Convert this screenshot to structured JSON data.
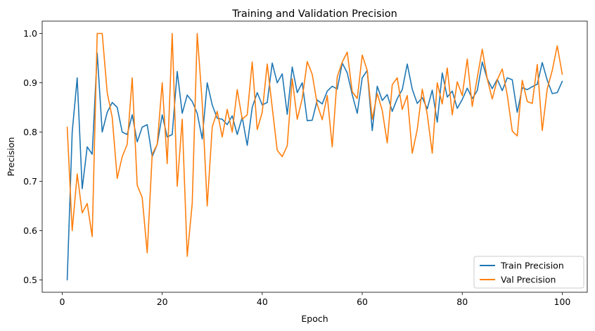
{
  "chart_data": {
    "type": "line",
    "title": "Training and Validation Precision",
    "xlabel": "Epoch",
    "ylabel": "Precision",
    "xlim": [
      -4,
      105
    ],
    "ylim": [
      0.475,
      1.025
    ],
    "xticks": [
      0,
      20,
      40,
      60,
      80,
      100
    ],
    "yticks": [
      0.5,
      0.6,
      0.7,
      0.8,
      0.9,
      1.0
    ],
    "ytick_labels": [
      "0.5",
      "0.6",
      "0.7",
      "0.8",
      "0.9",
      "1.0"
    ],
    "grid": false,
    "legend_position": "lower-right",
    "series": [
      {
        "name": "Train Precision",
        "color": "#1f77b4",
        "x": [
          1,
          2,
          3,
          4,
          5,
          6,
          7,
          8,
          9,
          10,
          11,
          12,
          13,
          14,
          15,
          16,
          17,
          18,
          19,
          20,
          21,
          22,
          23,
          24,
          25,
          26,
          27,
          28,
          29,
          30,
          31,
          32,
          33,
          34,
          35,
          36,
          37,
          38,
          39,
          40,
          41,
          42,
          43,
          44,
          45,
          46,
          47,
          48,
          49,
          50,
          51,
          52,
          53,
          54,
          55,
          56,
          57,
          58,
          59,
          60,
          61,
          62,
          63,
          64,
          65,
          66,
          67,
          68,
          69,
          70,
          71,
          72,
          73,
          74,
          75,
          76,
          77,
          78,
          79,
          80,
          81,
          82,
          83,
          84,
          85,
          86,
          87,
          88,
          89,
          90,
          91,
          92,
          93,
          94,
          95,
          96,
          97,
          98,
          99,
          100
        ],
        "values": [
          0.5,
          0.8,
          0.91,
          0.685,
          0.77,
          0.755,
          0.96,
          0.8,
          0.84,
          0.86,
          0.85,
          0.8,
          0.795,
          0.835,
          0.78,
          0.81,
          0.815,
          0.75,
          0.775,
          0.835,
          0.79,
          0.795,
          0.923,
          0.838,
          0.875,
          0.862,
          0.838,
          0.786,
          0.9,
          0.855,
          0.828,
          0.826,
          0.815,
          0.833,
          0.795,
          0.83,
          0.773,
          0.85,
          0.88,
          0.855,
          0.86,
          0.94,
          0.9,
          0.918,
          0.836,
          0.932,
          0.88,
          0.9,
          0.823,
          0.824,
          0.865,
          0.857,
          0.883,
          0.893,
          0.887,
          0.94,
          0.92,
          0.876,
          0.838,
          0.91,
          0.925,
          0.803,
          0.893,
          0.864,
          0.876,
          0.842,
          0.868,
          0.886,
          0.938,
          0.887,
          0.858,
          0.87,
          0.847,
          0.885,
          0.82,
          0.92,
          0.871,
          0.883,
          0.848,
          0.866,
          0.889,
          0.868,
          0.884,
          0.942,
          0.908,
          0.888,
          0.907,
          0.884,
          0.91,
          0.906,
          0.84,
          0.89,
          0.886,
          0.892,
          0.897,
          0.941,
          0.905,
          0.878,
          0.88,
          0.903
        ]
      },
      {
        "name": "Val Precision",
        "color": "#ff7f0e",
        "x": [
          1,
          2,
          3,
          4,
          5,
          6,
          7,
          8,
          9,
          10,
          11,
          12,
          13,
          14,
          15,
          16,
          17,
          18,
          19,
          20,
          21,
          22,
          23,
          24,
          25,
          26,
          27,
          28,
          29,
          30,
          31,
          32,
          33,
          34,
          35,
          36,
          37,
          38,
          39,
          40,
          41,
          42,
          43,
          44,
          45,
          46,
          47,
          48,
          49,
          50,
          51,
          52,
          53,
          54,
          55,
          56,
          57,
          58,
          59,
          60,
          61,
          62,
          63,
          64,
          65,
          66,
          67,
          68,
          69,
          70,
          71,
          72,
          73,
          74,
          75,
          76,
          77,
          78,
          79,
          80,
          81,
          82,
          83,
          84,
          85,
          86,
          87,
          88,
          89,
          90,
          91,
          92,
          93,
          94,
          95,
          96,
          97,
          98,
          99,
          100
        ],
        "values": [
          0.81,
          0.6,
          0.715,
          0.636,
          0.655,
          0.588,
          1.0,
          1.0,
          0.88,
          0.83,
          0.706,
          0.75,
          0.775,
          0.91,
          0.692,
          0.667,
          0.555,
          0.755,
          0.775,
          0.9,
          0.736,
          1.0,
          0.69,
          0.826,
          0.548,
          0.655,
          1.0,
          0.86,
          0.65,
          0.81,
          0.842,
          0.79,
          0.846,
          0.8,
          0.886,
          0.826,
          0.835,
          0.942,
          0.805,
          0.84,
          0.938,
          0.85,
          0.763,
          0.75,
          0.772,
          0.908,
          0.826,
          0.868,
          0.943,
          0.917,
          0.856,
          0.825,
          0.874,
          0.77,
          0.912,
          0.942,
          0.962,
          0.882,
          0.868,
          0.956,
          0.925,
          0.826,
          0.878,
          0.844,
          0.778,
          0.896,
          0.91,
          0.846,
          0.874,
          0.757,
          0.805,
          0.887,
          0.836,
          0.757,
          0.9,
          0.857,
          0.93,
          0.835,
          0.902,
          0.874,
          0.948,
          0.852,
          0.91,
          0.968,
          0.908,
          0.867,
          0.906,
          0.928,
          0.875,
          0.802,
          0.792,
          0.905,
          0.862,
          0.858,
          0.937,
          0.803,
          0.888,
          0.925,
          0.975,
          0.917
        ]
      }
    ]
  }
}
